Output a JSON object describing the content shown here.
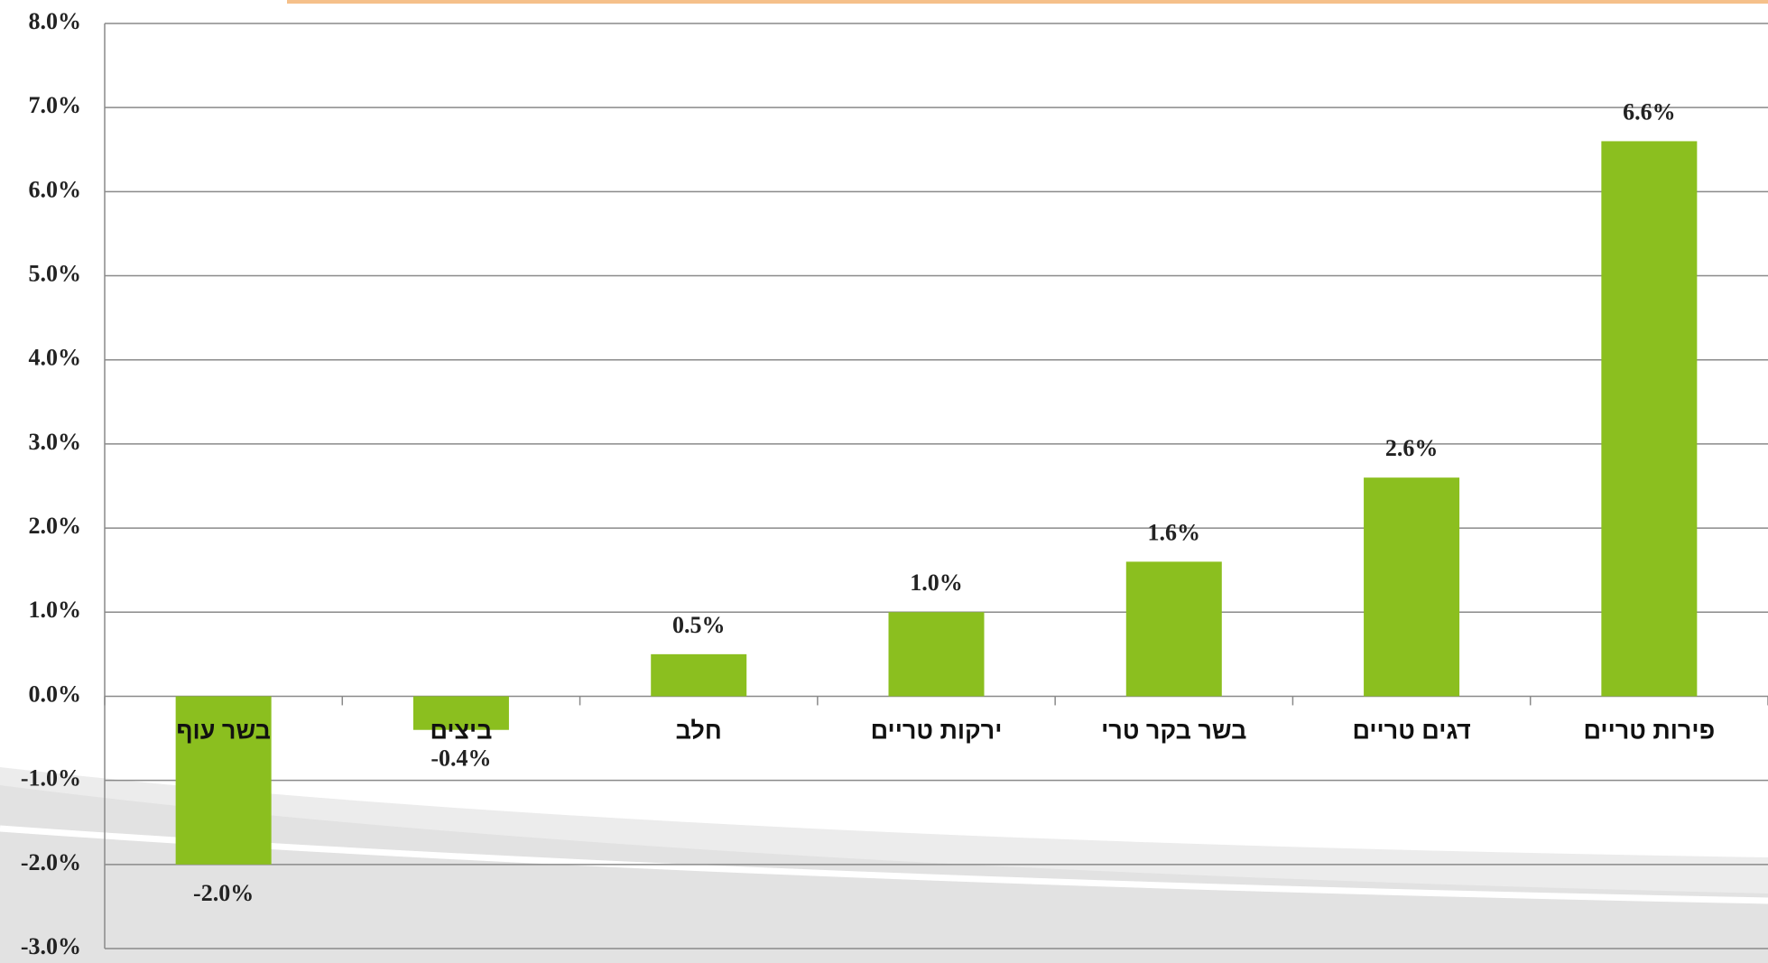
{
  "chart_data": {
    "type": "bar",
    "categories": [
      "בשר עוף",
      "ביצים",
      "חלב",
      "ירקות טריים",
      "בשר בקר טרי",
      "דגים טריים",
      "פירות טריים"
    ],
    "values": [
      -2.0,
      -0.4,
      0.5,
      1.0,
      1.6,
      2.6,
      6.6
    ],
    "value_labels": [
      "-2.0%",
      "-0.4%",
      "0.5%",
      "1.0%",
      "1.6%",
      "2.6%",
      "6.6%"
    ],
    "color": "#8bbf1f",
    "ylim": [
      -3,
      8
    ],
    "yticks": [
      {
        "value": -3,
        "label": "-3.0%"
      },
      {
        "value": -2,
        "label": "-2.0%"
      },
      {
        "value": -1,
        "label": "-1.0%"
      },
      {
        "value": 0,
        "label": "0.0%"
      },
      {
        "value": 1,
        "label": "1.0%"
      },
      {
        "value": 2,
        "label": "2.0%"
      },
      {
        "value": 3,
        "label": "3.0%"
      },
      {
        "value": 4,
        "label": "4.0%"
      },
      {
        "value": 5,
        "label": "5.0%"
      },
      {
        "value": 6,
        "label": "6.0%"
      },
      {
        "value": 7,
        "label": "7.0%"
      },
      {
        "value": 8,
        "label": "8.0%"
      }
    ],
    "grid": true
  }
}
